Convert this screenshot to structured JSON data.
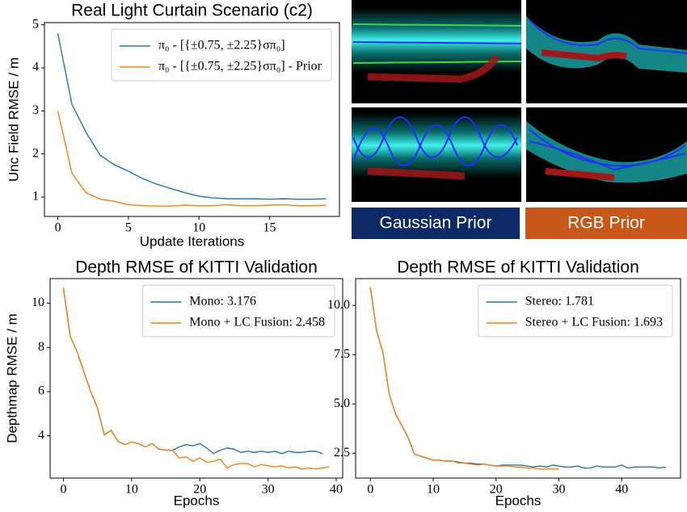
{
  "chart_data": [
    {
      "type": "line",
      "title": "Real Light Curtain Scenario (c2)",
      "xlabel": "Update Iterations",
      "ylabel": "Unc Field RMSE / m",
      "x": [
        0,
        1,
        2,
        3,
        4,
        5,
        6,
        7,
        8,
        9,
        10,
        11,
        12,
        13,
        14,
        15,
        16,
        17,
        18,
        19
      ],
      "series": [
        {
          "name": "π₀ - [{±0.75, ±2.25}σπ₀]",
          "color": "#1f77b4",
          "values": [
            4.8,
            3.15,
            2.5,
            1.97,
            1.75,
            1.6,
            1.43,
            1.3,
            1.2,
            1.1,
            1.02,
            0.98,
            0.96,
            0.96,
            0.96,
            0.95,
            0.96,
            0.95,
            0.95,
            0.96
          ]
        },
        {
          "name": "π₀ - [{±0.75, ±2.25}σπ₀] - Prior",
          "color": "#ff7f0e",
          "values": [
            3.0,
            1.55,
            1.1,
            0.95,
            0.9,
            0.82,
            0.8,
            0.79,
            0.79,
            0.81,
            0.8,
            0.8,
            0.82,
            0.8,
            0.8,
            0.81,
            0.82,
            0.8,
            0.8,
            0.81
          ]
        }
      ],
      "xlim": [
        -0.95,
        19.95
      ],
      "ylim": [
        0.55,
        5.05
      ],
      "xticks": [
        0,
        5,
        10,
        15
      ],
      "yticks": [
        1,
        2,
        3,
        4,
        5
      ],
      "legend": "upper right"
    },
    {
      "type": "line",
      "title": "Depth RMSE of KITTI Validation",
      "xlabel": "Epochs",
      "ylabel": "Depthmap RMSE / m",
      "x": [
        0,
        1,
        2,
        3,
        4,
        5,
        6,
        7,
        8,
        9,
        10,
        11,
        12,
        13,
        14,
        15,
        16,
        17,
        18,
        19,
        20,
        21,
        22,
        23,
        24,
        25,
        26,
        27,
        28,
        29,
        30,
        31,
        32,
        33,
        34,
        35,
        36,
        37,
        38,
        39
      ],
      "series": [
        {
          "name": "Mono: 3.176",
          "color": "#1f77b4",
          "values": [
            10.7,
            8.5,
            7.8,
            6.9,
            6.0,
            5.25,
            4.05,
            4.25,
            3.75,
            3.6,
            3.72,
            3.65,
            3.5,
            3.65,
            3.4,
            3.35,
            3.35,
            3.5,
            3.6,
            3.55,
            3.65,
            3.45,
            3.2,
            3.35,
            3.45,
            3.4,
            3.25,
            3.3,
            3.25,
            3.3,
            3.25,
            3.3,
            3.2,
            3.3,
            3.25,
            3.25,
            3.3,
            3.3,
            3.2,
            null
          ]
        },
        {
          "name": "Mono + LC Fusion: 2.458",
          "color": "#ff7f0e",
          "values": [
            10.7,
            8.5,
            7.8,
            6.9,
            6.0,
            5.25,
            4.05,
            4.25,
            3.75,
            3.6,
            3.72,
            3.65,
            3.5,
            3.65,
            3.4,
            3.35,
            3.35,
            3.0,
            3.05,
            2.85,
            3.0,
            2.8,
            2.85,
            2.95,
            2.55,
            2.7,
            2.75,
            2.75,
            2.6,
            2.7,
            2.65,
            2.6,
            2.65,
            2.55,
            2.6,
            2.5,
            2.55,
            2.5,
            2.55,
            2.6
          ]
        }
      ],
      "xlim": [
        -1.95,
        40.95
      ],
      "ylim": [
        2.09,
        11.11
      ],
      "xticks": [
        0,
        10,
        20,
        30,
        40
      ],
      "yticks": [
        4,
        6,
        8,
        10
      ],
      "legend": "upper right"
    },
    {
      "type": "line",
      "title": "Depth RMSE of KITTI Validation",
      "xlabel": "Epochs",
      "x": [
        0,
        1,
        2,
        3,
        4,
        5,
        6,
        7,
        8,
        9,
        10,
        11,
        12,
        13,
        14,
        15,
        16,
        17,
        18,
        19,
        20,
        21,
        22,
        23,
        24,
        25,
        26,
        27,
        28,
        29,
        30,
        31,
        32,
        33,
        34,
        35,
        36,
        37,
        38,
        39,
        40,
        41,
        42,
        43,
        44,
        45,
        46,
        47
      ],
      "series": [
        {
          "name": "Stereo: 1.781",
          "color": "#1f77b4",
          "values": [
            10.9,
            8.7,
            7.6,
            5.5,
            4.5,
            3.9,
            3.3,
            2.45,
            2.35,
            2.25,
            2.15,
            2.15,
            2.1,
            2.1,
            2.05,
            2.0,
            2.0,
            1.95,
            1.95,
            1.9,
            1.85,
            1.9,
            1.9,
            1.9,
            1.9,
            1.85,
            1.8,
            1.85,
            1.8,
            1.9,
            1.85,
            1.8,
            1.8,
            1.85,
            1.75,
            1.75,
            1.85,
            1.8,
            1.8,
            1.8,
            1.9,
            1.75,
            1.8,
            1.8,
            1.8,
            1.8,
            1.75,
            1.8
          ]
        },
        {
          "name": "Stereo + LC Fusion: 1.693",
          "color": "#ff7f0e",
          "values": [
            10.9,
            8.7,
            7.6,
            5.5,
            4.5,
            3.9,
            3.3,
            2.45,
            2.35,
            2.25,
            2.15,
            2.15,
            2.1,
            2.1,
            2.0,
            2.0,
            1.95,
            1.9,
            1.95,
            1.9,
            1.85,
            1.85,
            1.85,
            1.8,
            1.8,
            1.75,
            1.75,
            1.7,
            1.7,
            1.7,
            1.7,
            null,
            null,
            null,
            null,
            null,
            null,
            null,
            null,
            null,
            null,
            null,
            null,
            null,
            null,
            null,
            null,
            null
          ]
        }
      ],
      "xlim": [
        -2.35,
        49.35
      ],
      "ylim": [
        1.24,
        11.36
      ],
      "xticks": [
        0,
        10,
        20,
        30,
        40
      ],
      "yticks": [
        2.5,
        {
          "value": 5,
          "label": "5.0"
        },
        7.5,
        {
          "value": 10,
          "label": "10.0"
        }
      ],
      "legend": "upper right"
    }
  ],
  "image_panel": {
    "labels": [
      "Gaussian Prior",
      "RGB Prior"
    ]
  }
}
